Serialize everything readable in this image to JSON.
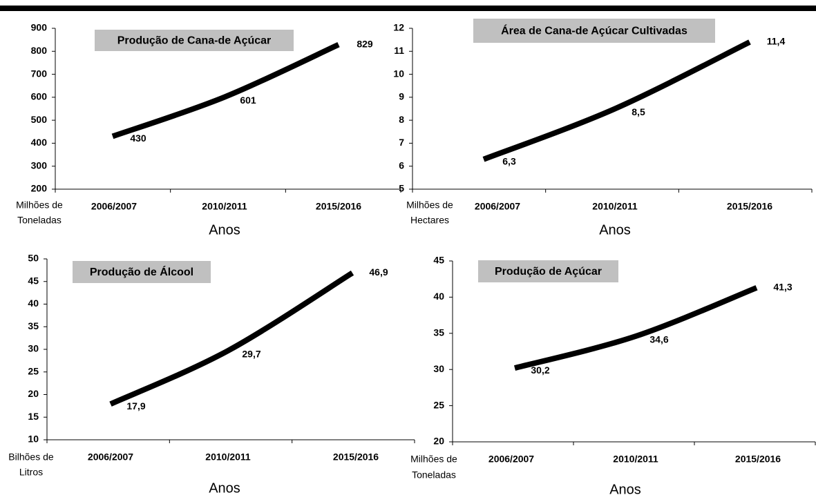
{
  "chart_data": [
    {
      "type": "line",
      "title": "Produção de Cana-de Açúcar",
      "categories": [
        "2006/2007",
        "2010/2011",
        "2015/2016"
      ],
      "values": [
        430,
        601,
        829
      ],
      "color": "#000000",
      "ylim": [
        200,
        900
      ],
      "yticks": [
        200,
        300,
        400,
        500,
        600,
        700,
        800,
        900
      ],
      "y_label": [
        "Milhões de",
        "Toneladas"
      ],
      "x_label": "Anos"
    },
    {
      "type": "line",
      "title": "Área de Cana-de Açúcar Cultivadas",
      "categories": [
        "2006/2007",
        "2010/2011",
        "2015/2016"
      ],
      "values": [
        6.3,
        8.5,
        11.4
      ],
      "value_labels": [
        "6,3",
        "8,5",
        "11,4"
      ],
      "color": "#000000",
      "ylim": [
        5,
        12
      ],
      "yticks": [
        5,
        6,
        7,
        8,
        9,
        10,
        11,
        12
      ],
      "y_label": [
        "Milhões de",
        "Hectares"
      ],
      "x_label": "Anos"
    },
    {
      "type": "line",
      "title": "Produção de Álcool",
      "categories": [
        "2006/2007",
        "2010/2011",
        "2015/2016"
      ],
      "values": [
        17.9,
        29.7,
        46.9
      ],
      "value_labels": [
        "17,9",
        "29,7",
        "46,9"
      ],
      "color": "#000000",
      "ylim": [
        10,
        50
      ],
      "yticks": [
        10,
        15,
        20,
        25,
        30,
        35,
        40,
        45,
        50
      ],
      "y_label": [
        "Bilhões de",
        "Litros"
      ],
      "x_label": "Anos"
    },
    {
      "type": "line",
      "title": "Produção de Açúcar",
      "categories": [
        "2006/2007",
        "2010/2011",
        "2015/2016"
      ],
      "values": [
        30.2,
        34.6,
        41.3
      ],
      "value_labels": [
        "30,2",
        "34,6",
        "41,3"
      ],
      "color": "#000000",
      "ylim": [
        20,
        45
      ],
      "yticks": [
        20,
        25,
        30,
        35,
        40,
        45
      ],
      "y_label": [
        "Milhões de",
        "Toneladas"
      ],
      "x_label": "Anos"
    }
  ]
}
